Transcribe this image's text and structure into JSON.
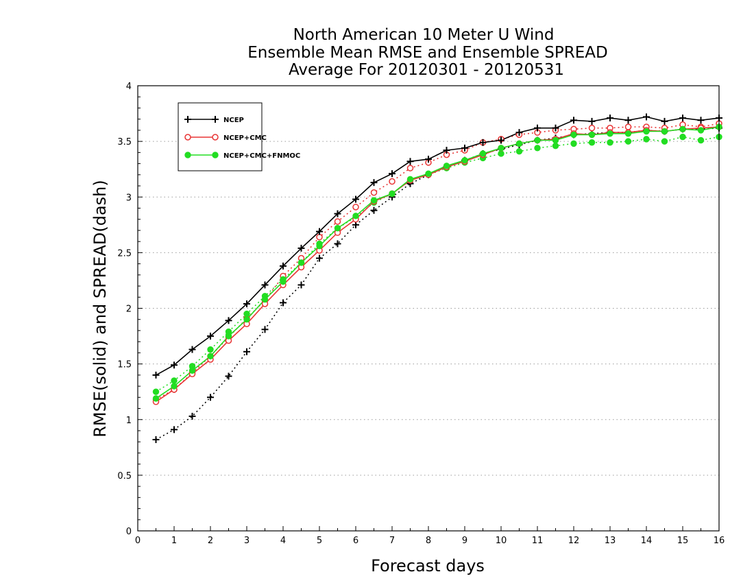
{
  "chart_data": {
    "type": "line",
    "title": [
      "North American 10 Meter U Wind",
      "Ensemble Mean RMSE and Ensemble SPREAD",
      "Average For 20120301 - 20120531"
    ],
    "xlabel": "Forecast days",
    "ylabel": "RMSE(solid) and SPREAD(dash)",
    "xlim": [
      0,
      16
    ],
    "ylim": [
      0,
      4
    ],
    "xticks": [
      "0",
      "1",
      "2",
      "3",
      "4",
      "5",
      "6",
      "7",
      "8",
      "9",
      "10",
      "11",
      "12",
      "13",
      "14",
      "15",
      "16"
    ],
    "yticks": [
      "0",
      "0.5",
      "1",
      "1.5",
      "2",
      "2.5",
      "3",
      "3.5",
      "4"
    ],
    "grid": "horizontal dotted",
    "legend_position": "top-left",
    "x": [
      0.5,
      1,
      1.5,
      2,
      2.5,
      3,
      3.5,
      4,
      4.5,
      5,
      5.5,
      6,
      6.5,
      7,
      7.5,
      8,
      8.5,
      9,
      9.5,
      10,
      10.5,
      11,
      11.5,
      12,
      12.5,
      13,
      13.5,
      14,
      14.5,
      15,
      15.5,
      16
    ],
    "series": [
      {
        "name": "NCEP",
        "color": "#000000",
        "marker": "plus",
        "rmse": [
          1.4,
          1.49,
          1.63,
          1.75,
          1.89,
          2.04,
          2.21,
          2.38,
          2.54,
          2.69,
          2.85,
          2.98,
          3.13,
          3.21,
          3.32,
          3.34,
          3.42,
          3.44,
          3.49,
          3.51,
          3.58,
          3.62,
          3.62,
          3.69,
          3.68,
          3.71,
          3.69,
          3.72,
          3.68,
          3.71,
          3.69,
          3.71
        ],
        "spread": [
          0.82,
          0.91,
          1.03,
          1.2,
          1.39,
          1.61,
          1.81,
          2.05,
          2.21,
          2.45,
          2.58,
          2.75,
          2.88,
          3.0,
          3.12,
          3.2,
          3.27,
          3.33,
          3.39,
          3.43,
          3.47,
          3.51,
          3.53,
          3.56,
          3.57,
          3.58,
          3.58,
          3.6,
          3.59,
          3.61,
          3.61,
          3.62
        ]
      },
      {
        "name": "NCEP+CMC",
        "color": "#e83333",
        "marker": "open-circle",
        "rmse": [
          1.16,
          1.27,
          1.41,
          1.54,
          1.71,
          1.86,
          2.04,
          2.21,
          2.37,
          2.52,
          2.68,
          2.8,
          2.96,
          3.03,
          3.15,
          3.2,
          3.27,
          3.32,
          3.38,
          3.44,
          3.48,
          3.51,
          3.52,
          3.57,
          3.56,
          3.58,
          3.58,
          3.6,
          3.59,
          3.61,
          3.62,
          3.63
        ],
        "spread": [
          1.18,
          1.27,
          1.42,
          1.57,
          1.74,
          1.91,
          2.07,
          2.29,
          2.45,
          2.64,
          2.78,
          2.91,
          3.04,
          3.14,
          3.26,
          3.31,
          3.38,
          3.42,
          3.49,
          3.52,
          3.56,
          3.58,
          3.6,
          3.61,
          3.62,
          3.62,
          3.63,
          3.63,
          3.62,
          3.65,
          3.63,
          3.66
        ]
      },
      {
        "name": "NCEP+CMC+FNMOC",
        "color": "#22dd22",
        "marker": "filled-circle",
        "rmse": [
          1.19,
          1.3,
          1.44,
          1.57,
          1.75,
          1.9,
          2.08,
          2.24,
          2.41,
          2.56,
          2.72,
          2.83,
          2.97,
          3.03,
          3.16,
          3.21,
          3.28,
          3.33,
          3.39,
          3.44,
          3.48,
          3.51,
          3.51,
          3.56,
          3.56,
          3.57,
          3.57,
          3.59,
          3.59,
          3.61,
          3.6,
          3.63
        ],
        "spread": [
          1.25,
          1.35,
          1.48,
          1.63,
          1.79,
          1.95,
          2.11,
          2.26,
          2.41,
          2.58,
          2.72,
          2.82,
          2.95,
          3.03,
          3.15,
          3.2,
          3.26,
          3.31,
          3.35,
          3.39,
          3.41,
          3.44,
          3.46,
          3.48,
          3.49,
          3.49,
          3.5,
          3.52,
          3.5,
          3.54,
          3.51,
          3.54
        ]
      }
    ]
  }
}
